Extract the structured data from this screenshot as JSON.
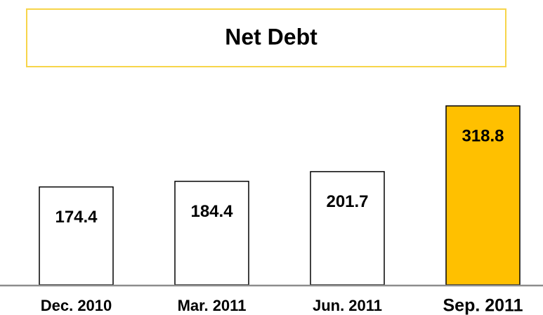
{
  "chart_data": {
    "type": "bar",
    "title": "Net Debt",
    "categories": [
      "Dec. 2010",
      "Mar. 2011",
      "Jun. 2011",
      "Sep. 2011"
    ],
    "values": [
      174.4,
      184.4,
      201.7,
      318.8
    ],
    "colors": [
      "#ffffff",
      "#ffffff",
      "#ffffff",
      "#ffc000"
    ]
  }
}
